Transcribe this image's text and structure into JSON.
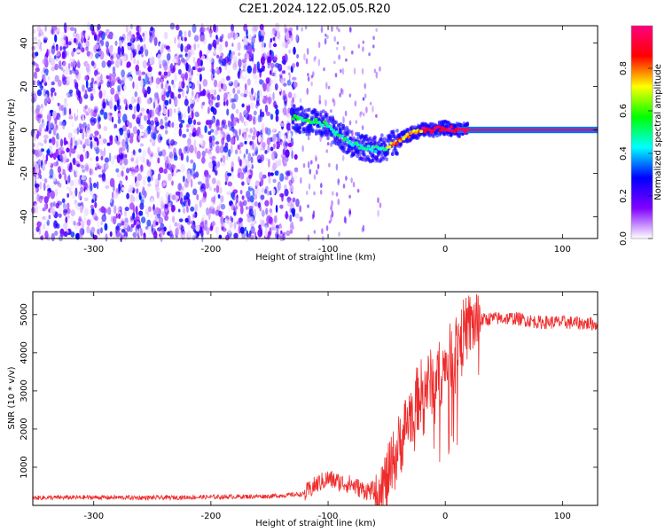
{
  "title": "C2E1.2024.122.05.05.R20",
  "chart_data": [
    {
      "type": "heatmap",
      "xlabel": "Height of straight line (km)",
      "ylabel": "Frequency (Hz)",
      "xlim": [
        -352,
        130
      ],
      "ylim": [
        -50,
        48
      ],
      "xticks": [
        -300,
        -200,
        -100,
        0,
        100
      ],
      "yticks": [
        -40,
        -20,
        0,
        20,
        40
      ],
      "noise_region_x": [
        -352,
        -126
      ],
      "signal_ridge": {
        "x": [
          -130,
          -120,
          -110,
          -100,
          -90,
          -80,
          -70,
          -60,
          -50,
          -40,
          -30,
          -20,
          -10,
          0,
          10,
          20,
          130
        ],
        "y": [
          6,
          4,
          4,
          2,
          -3,
          -6,
          -8,
          -9,
          -8,
          -5,
          -2,
          0,
          0,
          1,
          0,
          0,
          0
        ]
      },
      "colorbar": {
        "label": "Normalized spectral amplitude",
        "range": [
          0,
          1
        ],
        "ticks": [
          0.0,
          0.2,
          0.4,
          0.6,
          0.8
        ],
        "tick_labels": [
          "0.0",
          "0.2",
          "0.4",
          "0.6",
          "0.8"
        ],
        "colors": [
          "#ffffff",
          "#8000ff",
          "#0000ff",
          "#00ffff",
          "#00ff00",
          "#ffff00",
          "#ff0000",
          "#ff0080"
        ]
      }
    },
    {
      "type": "line",
      "xlabel": "Height of straight line (km)",
      "ylabel": "SNR (10 * v/v)",
      "xlim": [
        -352,
        130
      ],
      "ylim": [
        0,
        5600
      ],
      "xticks": [
        -300,
        -200,
        -100,
        0,
        100
      ],
      "yticks": [
        1000,
        2000,
        3000,
        4000,
        5000
      ],
      "series": [
        {
          "color": "#ef2b2b",
          "x": [
            -352,
            -300,
            -250,
            -200,
            -150,
            -120,
            -110,
            -100,
            -90,
            -80,
            -70,
            -60,
            -50,
            -40,
            -30,
            -20,
            -10,
            0,
            10,
            20,
            30,
            40,
            60,
            80,
            100,
            130
          ],
          "y": [
            200,
            210,
            200,
            220,
            240,
            300,
            550,
            700,
            600,
            550,
            400,
            380,
            600,
            1500,
            2400,
            3000,
            3300,
            3600,
            4300,
            4700,
            4850,
            4900,
            4900,
            4800,
            4800,
            4750
          ]
        }
      ]
    }
  ]
}
